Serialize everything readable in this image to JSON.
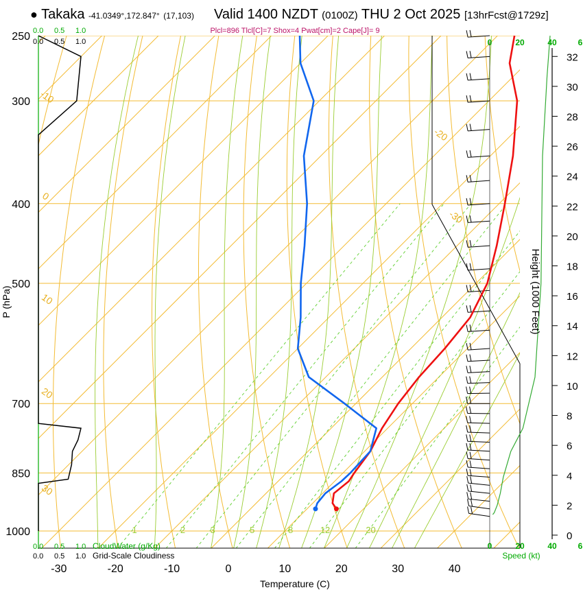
{
  "header": {
    "station": "Takaka",
    "location": "-41.0349°,172.847°",
    "grid": "(17,103)",
    "valid": "Valid 1400 NZDT",
    "utc": "(0100Z)",
    "date": "THU 2 Oct 2025",
    "forecast": "[13hrFcst@1729z]"
  },
  "chart_data": {
    "type": "line",
    "title": "Skew-T log-P diagram",
    "indices": "Plcl=896 Tlcl[C]=7 Shox=4 Pwat[cm]=2 Cape[J]= 9",
    "xlabel": "Temperature (C)",
    "ylabel": "P (hPa)",
    "xticks": [
      -30,
      -20,
      -10,
      0,
      10,
      20,
      30,
      40
    ],
    "xticklabels": [
      "-30",
      "-20",
      "-10",
      "0",
      "10",
      "20",
      "30",
      "40"
    ],
    "yticks": [
      250,
      300,
      400,
      500,
      700,
      850,
      1000
    ],
    "yticklabels": [
      "250",
      "300",
      "400",
      "500",
      "700",
      "850",
      "1000"
    ],
    "ylim": [
      1000,
      250
    ],
    "skew_note": "isotherm labels along left and top edges",
    "isotherm_labels": [
      "-10",
      "0",
      "10",
      "20",
      "30",
      "-20",
      "-30"
    ],
    "mixing_ratio_labels": [
      "1",
      "2",
      "3",
      "5",
      "8",
      "12",
      "20"
    ],
    "series": [
      {
        "name": "Temperature",
        "color": "#ee1111",
        "points": [
          [
            15.2,
            940
          ],
          [
            13.5,
            925
          ],
          [
            12.0,
            900
          ],
          [
            12.5,
            870
          ],
          [
            12.0,
            850
          ],
          [
            11.0,
            800
          ],
          [
            9.0,
            750
          ],
          [
            7.5,
            700
          ],
          [
            6.5,
            650
          ],
          [
            6.0,
            600
          ],
          [
            5.0,
            550
          ],
          [
            2.0,
            500
          ],
          [
            -3.0,
            450
          ],
          [
            -9.0,
            400
          ],
          [
            -16.0,
            350
          ],
          [
            -25.0,
            300
          ],
          [
            -33.0,
            270
          ],
          [
            -37.0,
            250
          ]
        ]
      },
      {
        "name": "Dew point",
        "color": "#1166ee",
        "points": [
          [
            11.5,
            940
          ],
          [
            10.8,
            925
          ],
          [
            10.5,
            900
          ],
          [
            11.2,
            870
          ],
          [
            11.3,
            850
          ],
          [
            11.0,
            800
          ],
          [
            8.0,
            750
          ],
          [
            -2.0,
            700
          ],
          [
            -13.0,
            650
          ],
          [
            -20.0,
            600
          ],
          [
            -25.0,
            550
          ],
          [
            -31.0,
            500
          ],
          [
            -37.0,
            450
          ],
          [
            -44.0,
            400
          ],
          [
            -53.0,
            350
          ],
          [
            -61.0,
            300
          ],
          [
            -70.0,
            270
          ],
          [
            -75.0,
            250
          ]
        ]
      }
    ],
    "cloudwater": {
      "label": "CloudWater (g/Kg)",
      "ticks": [
        "0.0",
        "0.5",
        "1.0"
      ]
    },
    "cloudiness": {
      "label": "Grid-Scale Cloudiness",
      "ticks": [
        "0.0",
        "0.5",
        "1.0"
      ],
      "profile": [
        [
          0,
          1000
        ],
        [
          0,
          875
        ],
        [
          0.7,
          865
        ],
        [
          0.78,
          830
        ],
        [
          0.8,
          800
        ],
        [
          0.93,
          775
        ],
        [
          1.0,
          750
        ],
        [
          0,
          740
        ],
        [
          0,
          330
        ],
        [
          0.9,
          300
        ],
        [
          1.0,
          265
        ],
        [
          0,
          250
        ]
      ]
    },
    "wind_speed": {
      "label": "Speed (kt)",
      "ticks": [
        "0",
        "20",
        "40",
        "6"
      ],
      "profile": [
        [
          2,
          955
        ],
        [
          3,
          950
        ],
        [
          5,
          930
        ],
        [
          7,
          900
        ],
        [
          9,
          860
        ],
        [
          14,
          800
        ],
        [
          22,
          750
        ],
        [
          30,
          650
        ],
        [
          34,
          500
        ],
        [
          35,
          350
        ],
        [
          38,
          280
        ],
        [
          40,
          250
        ]
      ]
    },
    "height_axis": {
      "label": "Height (1000 Feet)",
      "ticks": [
        "0",
        "2",
        "4",
        "6",
        "8",
        "10",
        "12",
        "14",
        "16",
        "18",
        "20",
        "22",
        "24",
        "26",
        "28",
        "30",
        "32"
      ]
    },
    "wind_barbs": [
      {
        "p": 960,
        "dir": 250,
        "kt": 20
      },
      {
        "p": 940,
        "dir": 250,
        "kt": 20
      },
      {
        "p": 920,
        "dir": 255,
        "kt": 20
      },
      {
        "p": 900,
        "dir": 255,
        "kt": 20
      },
      {
        "p": 880,
        "dir": 255,
        "kt": 20
      },
      {
        "p": 860,
        "dir": 260,
        "kt": 20
      },
      {
        "p": 840,
        "dir": 260,
        "kt": 20
      },
      {
        "p": 820,
        "dir": 260,
        "kt": 20
      },
      {
        "p": 800,
        "dir": 262,
        "kt": 20
      },
      {
        "p": 780,
        "dir": 264,
        "kt": 20
      },
      {
        "p": 760,
        "dir": 265,
        "kt": 20
      },
      {
        "p": 740,
        "dir": 266,
        "kt": 20
      },
      {
        "p": 720,
        "dir": 268,
        "kt": 20
      },
      {
        "p": 700,
        "dir": 270,
        "kt": 20
      },
      {
        "p": 680,
        "dir": 272,
        "kt": 20
      },
      {
        "p": 660,
        "dir": 275,
        "kt": 20
      },
      {
        "p": 640,
        "dir": 278,
        "kt": 20
      },
      {
        "p": 620,
        "dir": 278,
        "kt": 20
      },
      {
        "p": 600,
        "dir": 280,
        "kt": 20
      },
      {
        "p": 570,
        "dir": 280,
        "kt": 20
      },
      {
        "p": 540,
        "dir": 280,
        "kt": 20
      },
      {
        "p": 510,
        "dir": 280,
        "kt": 20
      },
      {
        "p": 480,
        "dir": 280,
        "kt": 20
      },
      {
        "p": 450,
        "dir": 280,
        "kt": 20
      },
      {
        "p": 420,
        "dir": 280,
        "kt": 20
      },
      {
        "p": 400,
        "dir": 280,
        "kt": 20
      },
      {
        "p": 375,
        "dir": 280,
        "kt": 20
      },
      {
        "p": 350,
        "dir": 280,
        "kt": 20
      },
      {
        "p": 325,
        "dir": 280,
        "kt": 20
      },
      {
        "p": 300,
        "dir": 280,
        "kt": 20
      },
      {
        "p": 282,
        "dir": 280,
        "kt": 20
      },
      {
        "p": 265,
        "dir": 280,
        "kt": 20
      },
      {
        "p": 250,
        "dir": 280,
        "kt": 20
      }
    ]
  }
}
